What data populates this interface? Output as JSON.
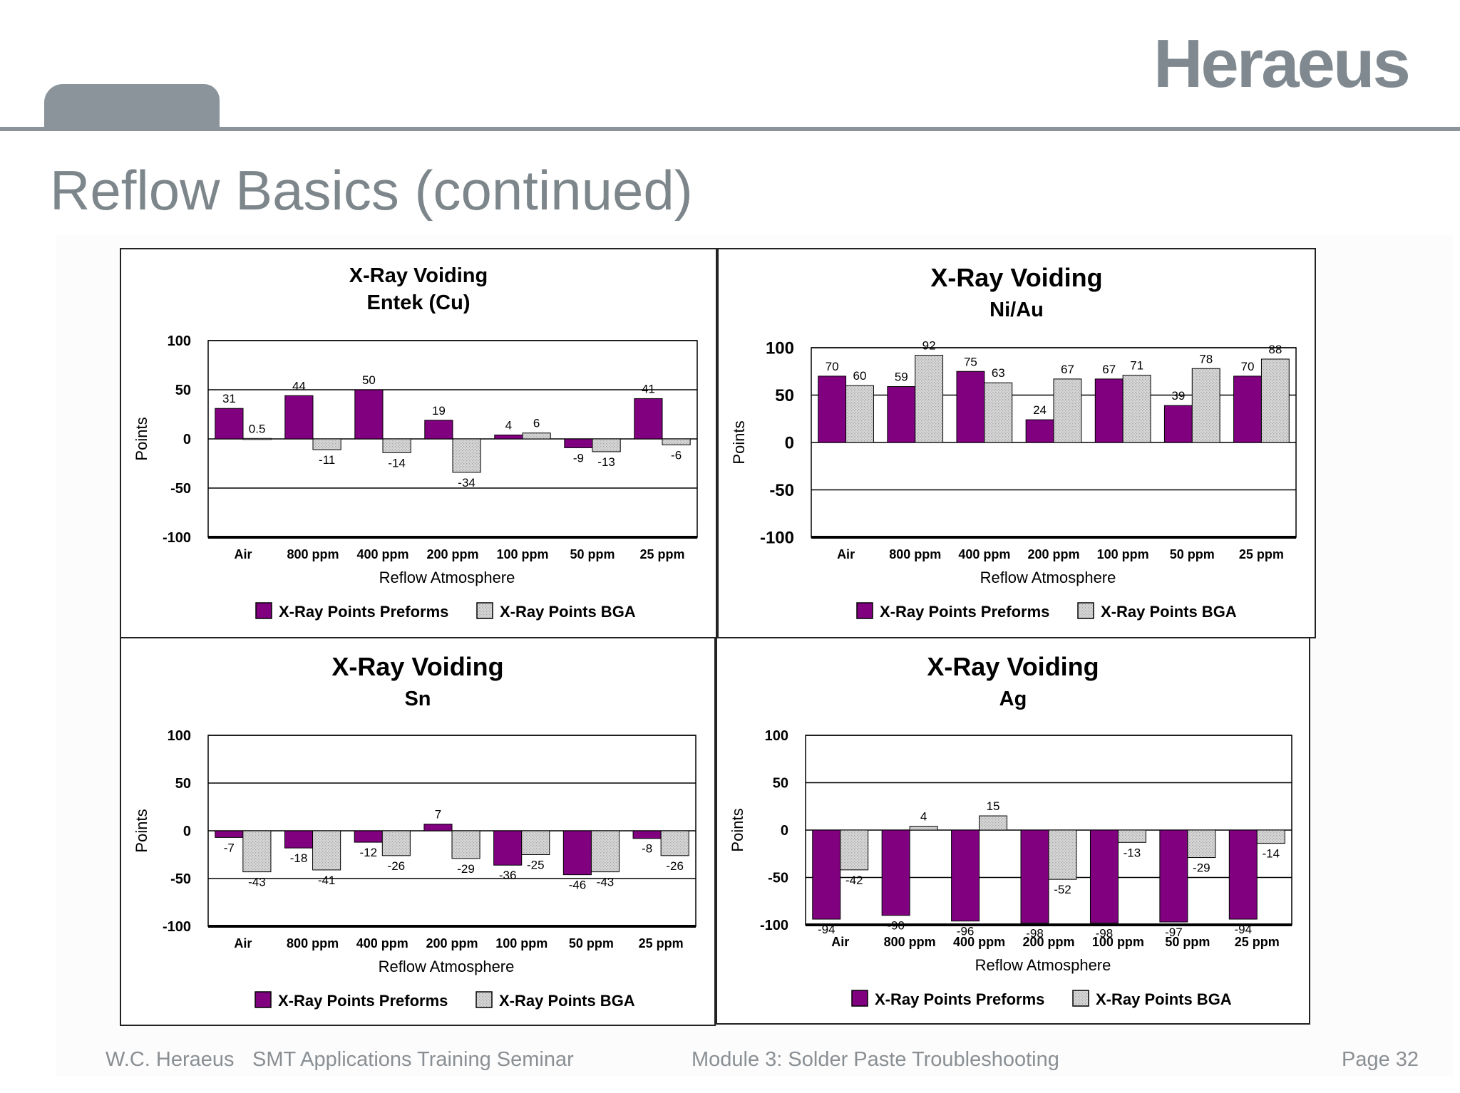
{
  "header": {
    "logo_text": "Heraeus",
    "accent_color": "#8a949a"
  },
  "slide": {
    "title": "Reflow Basics (continued)"
  },
  "footer": {
    "company": "W.C. Heraeus",
    "seminar": "SMT Applications Training Seminar",
    "module": "Module 3: Solder Paste Troubleshooting",
    "page": "Page 32"
  },
  "colors": {
    "preforms": "#800080",
    "bga": "#d8d8d8",
    "bga_hatch": "#a8a8a8"
  },
  "chart_data": [
    {
      "type": "bar",
      "title": "X-Ray Voiding",
      "subtitle": "Entek (Cu)",
      "xlabel": "Reflow Atmosphere",
      "ylabel": "Points",
      "ylim": [
        -100,
        100
      ],
      "yticks": [
        100,
        50,
        0,
        -50,
        -100
      ],
      "grid": true,
      "legend": "bottom",
      "categories": [
        "Air",
        "800 ppm",
        "400 ppm",
        "200 ppm",
        "100 ppm",
        "50 ppm",
        "25 ppm"
      ],
      "series": [
        {
          "name": "X-Ray Points Preforms",
          "values": [
            31,
            44,
            50,
            19,
            4,
            -9,
            41
          ],
          "labels": [
            "31",
            "44",
            "50",
            "19",
            "4",
            "-9",
            "41"
          ]
        },
        {
          "name": "X-Ray Points BGA",
          "values": [
            0.5,
            -11,
            -14,
            -34,
            6,
            -13,
            -6
          ],
          "labels": [
            "0.5",
            "-11",
            "-14",
            "-34",
            "6",
            "-13",
            "-6"
          ]
        }
      ]
    },
    {
      "type": "bar",
      "title": "X-Ray Voiding",
      "subtitle": "Ni/Au",
      "xlabel": "Reflow Atmosphere",
      "ylabel": "Points",
      "ylim": [
        -100,
        100
      ],
      "yticks": [
        100,
        50,
        0,
        -50,
        -100
      ],
      "grid": true,
      "legend": "bottom",
      "categories": [
        "Air",
        "800 ppm",
        "400 ppm",
        "200 ppm",
        "100 ppm",
        "50 ppm",
        "25 ppm"
      ],
      "series": [
        {
          "name": "X-Ray Points Preforms",
          "values": [
            70,
            59,
            75,
            24,
            67,
            39,
            70
          ],
          "labels": [
            "70",
            "59",
            "75",
            "24",
            "67",
            "39",
            "70"
          ]
        },
        {
          "name": "X-Ray Points BGA",
          "values": [
            60,
            92,
            63,
            67,
            71,
            78,
            88
          ],
          "labels": [
            "60",
            "92",
            "63",
            "67",
            "71",
            "78",
            "88"
          ]
        }
      ]
    },
    {
      "type": "bar",
      "title": "X-Ray Voiding",
      "subtitle": "Sn",
      "xlabel": "Reflow Atmosphere",
      "ylabel": "Points",
      "ylim": [
        -100,
        100
      ],
      "yticks": [
        100,
        50,
        0,
        -50,
        -100
      ],
      "grid": true,
      "legend": "bottom",
      "categories": [
        "Air",
        "800 ppm",
        "400 ppm",
        "200 ppm",
        "100 ppm",
        "50 ppm",
        "25 ppm"
      ],
      "series": [
        {
          "name": "X-Ray Points Preforms",
          "values": [
            -7,
            -18,
            -12,
            7,
            -36,
            -46,
            -8
          ],
          "labels": [
            "-7",
            "-18",
            "-12",
            "7",
            "-36",
            "-46",
            "-8"
          ]
        },
        {
          "name": "X-Ray Points BGA",
          "values": [
            -43,
            -41,
            -26,
            -29,
            -25,
            -43,
            -26
          ],
          "labels": [
            "-43",
            "-41",
            "-26",
            "-29",
            "-25",
            "-43",
            "-26"
          ]
        }
      ]
    },
    {
      "type": "bar",
      "title": "X-Ray Voiding",
      "subtitle": "Ag",
      "xlabel": "Reflow Atmosphere",
      "ylabel": "Points",
      "ylim": [
        -100,
        100
      ],
      "yticks": [
        100,
        50,
        0,
        -50,
        -100
      ],
      "grid": true,
      "legend": "bottom",
      "categories": [
        "Air",
        "800 ppm",
        "400 ppm",
        "200 ppm",
        "100 ppm",
        "50 ppm",
        "25 ppm"
      ],
      "series": [
        {
          "name": "X-Ray Points Preforms",
          "values": [
            -94,
            -90,
            -96,
            -98,
            -98,
            -97,
            -94
          ],
          "labels": [
            "-94",
            "-90",
            "-96",
            "-98",
            "-98",
            "-97",
            "-94"
          ]
        },
        {
          "name": "X-Ray Points BGA",
          "values": [
            -42,
            4,
            15,
            -52,
            -13,
            -29,
            -14
          ],
          "labels": [
            "-42",
            "4",
            "15",
            "-52",
            "-13",
            "-29",
            "-14"
          ]
        }
      ]
    }
  ]
}
